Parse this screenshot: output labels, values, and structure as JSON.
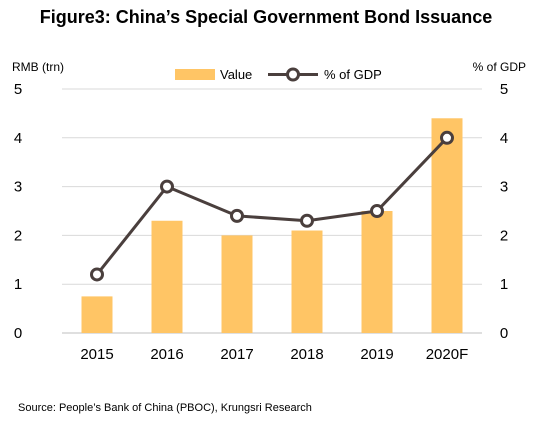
{
  "chart_data": {
    "type": "bar+line",
    "title": "Figure3: China’s Special Government Bond Issuance",
    "left_axis_label": "RMB (trn)",
    "right_axis_label": "% of GDP",
    "categories": [
      "2015",
      "2016",
      "2017",
      "2018",
      "2019",
      "2020F"
    ],
    "series": [
      {
        "name": "Value",
        "kind": "bar",
        "axis": "left",
        "color": "#FFC565",
        "values": [
          0.75,
          2.3,
          2.0,
          2.1,
          2.5,
          4.4
        ]
      },
      {
        "name": "% of GDP",
        "kind": "line",
        "axis": "right",
        "color": "#4A3F3D",
        "values": [
          1.2,
          3.0,
          2.4,
          2.3,
          2.5,
          4.0
        ]
      }
    ],
    "left_ylim": [
      0,
      5
    ],
    "right_ylim": [
      0,
      5
    ],
    "left_ticks": [
      "0",
      "1",
      "2",
      "3",
      "4",
      "5"
    ],
    "right_ticks": [
      "0",
      "1",
      "2",
      "3",
      "4",
      "5"
    ],
    "gridlines": true,
    "legend_position": "top-center"
  },
  "footer": {
    "source": "Source: People’s Bank of China (PBOC), Krungsri Research"
  }
}
